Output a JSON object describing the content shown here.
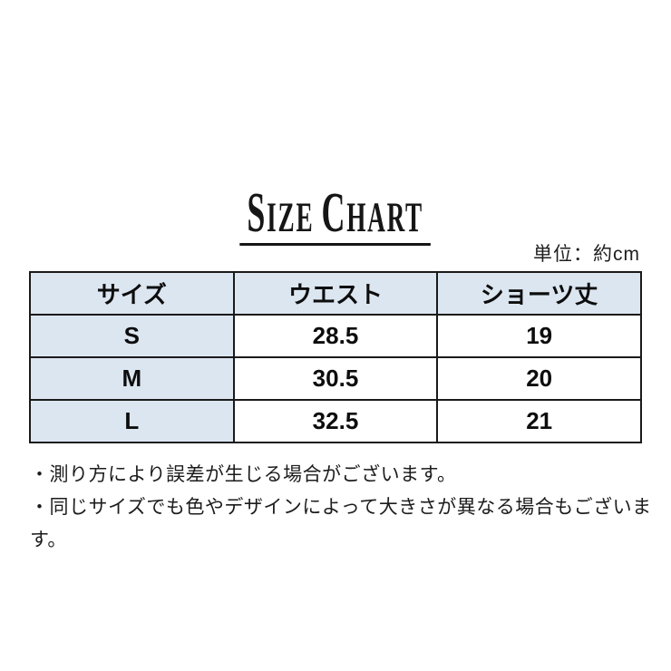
{
  "title": {
    "text": "SIZE CHART",
    "parts": {
      "size_initial": "S",
      "size_rest": "IZE",
      "chart_initial": "C",
      "chart_rest": "HART"
    }
  },
  "unit_label": "単位：約cm",
  "table": {
    "headers": [
      "サイズ",
      "ウエスト",
      "ショーツ丈"
    ],
    "rows": [
      [
        "S",
        "28.5",
        "19"
      ],
      [
        "M",
        "30.5",
        "20"
      ],
      [
        "L",
        "32.5",
        "21"
      ]
    ]
  },
  "notes": [
    "・測り方により誤差が生じる場合がございます。",
    "・同じサイズでも色やデザインによって大きさが異なる場合もございます。"
  ],
  "colors": {
    "background": "#ffffff",
    "header_bg": "#dce6f1",
    "size_column_bg": "#dce6f1",
    "border": "#1a1a1a",
    "text": "#0d0d0d",
    "title_text": "#161616"
  },
  "chart_data": {
    "type": "table",
    "title": "SIZE CHART",
    "unit": "約cm",
    "columns": [
      "サイズ",
      "ウエスト",
      "ショーツ丈"
    ],
    "rows": [
      {
        "size": "S",
        "waist": 28.5,
        "shorts_length": 19
      },
      {
        "size": "M",
        "waist": 30.5,
        "shorts_length": 20
      },
      {
        "size": "L",
        "waist": 32.5,
        "shorts_length": 21
      }
    ]
  }
}
